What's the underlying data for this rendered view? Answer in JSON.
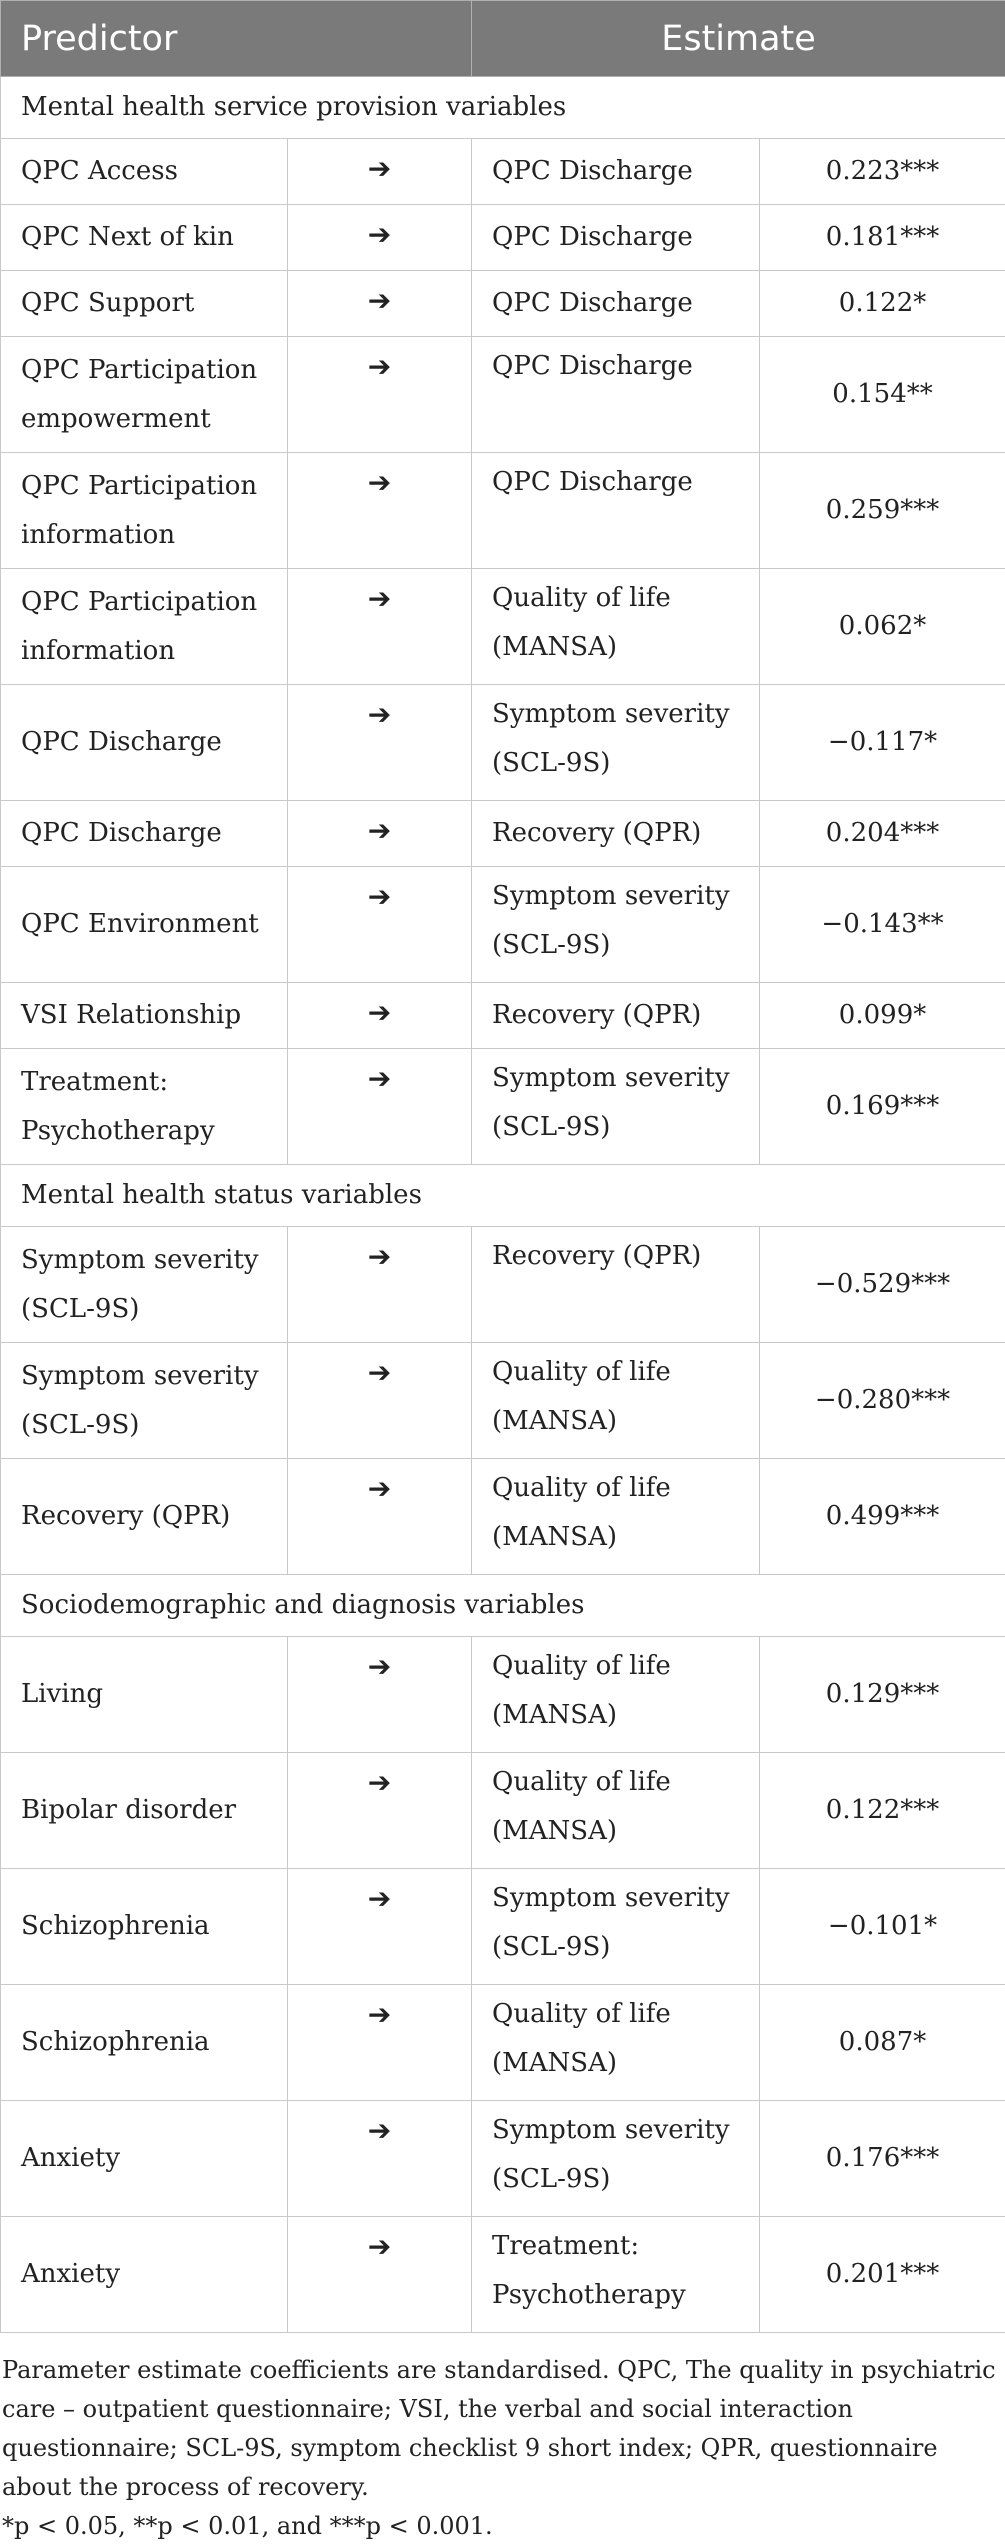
{
  "header": {
    "predictor": "Predictor",
    "estimate": "Estimate"
  },
  "arrow": "➔",
  "sections": [
    {
      "title": "Mental health service provision variables",
      "rows": [
        {
          "predictor": "QPC Access",
          "outcome": "QPC Discharge",
          "estimate": "0.223***"
        },
        {
          "predictor": "QPC Next of kin",
          "outcome": "QPC Discharge",
          "estimate": "0.181***"
        },
        {
          "predictor": "QPC Support",
          "outcome": "QPC Discharge",
          "estimate": "0.122*"
        },
        {
          "predictor": "QPC Participation empowerment",
          "outcome": "QPC Discharge",
          "estimate": "0.154**"
        },
        {
          "predictor": "QPC Participation information",
          "outcome": "QPC Discharge",
          "estimate": "0.259***"
        },
        {
          "predictor": "QPC Participation information",
          "outcome": "Quality of life (MANSA)",
          "estimate": "0.062*"
        },
        {
          "predictor": "QPC Discharge",
          "outcome": "Symptom severity (SCL-9S)",
          "estimate": "−0.117*"
        },
        {
          "predictor": "QPC Discharge",
          "outcome": "Recovery (QPR)",
          "estimate": "0.204***"
        },
        {
          "predictor": "QPC Environment",
          "outcome": "Symptom severity (SCL-9S)",
          "estimate": "−0.143**"
        },
        {
          "predictor": "VSI Relationship",
          "outcome": "Recovery (QPR)",
          "estimate": "0.099*"
        },
        {
          "predictor": "Treatment: Psychotherapy",
          "outcome": "Symptom severity (SCL-9S)",
          "estimate": "0.169***"
        }
      ]
    },
    {
      "title": "Mental health status variables",
      "rows": [
        {
          "predictor": "Symptom severity (SCL-9S)",
          "outcome": "Recovery (QPR)",
          "estimate": "−0.529***"
        },
        {
          "predictor": "Symptom severity (SCL-9S)",
          "outcome": "Quality of life (MANSA)",
          "estimate": "−0.280***"
        },
        {
          "predictor": "Recovery (QPR)",
          "outcome": "Quality of life (MANSA)",
          "estimate": "0.499***"
        }
      ]
    },
    {
      "title": "Sociodemographic and diagnosis variables",
      "rows": [
        {
          "predictor": "Living",
          "outcome": "Quality of life (MANSA)",
          "estimate": "0.129***"
        },
        {
          "predictor": "Bipolar disorder",
          "outcome": "Quality of life (MANSA)",
          "estimate": "0.122***"
        },
        {
          "predictor": "Schizophrenia",
          "outcome": "Symptom severity (SCL-9S)",
          "estimate": "−0.101*"
        },
        {
          "predictor": "Schizophrenia",
          "outcome": "Quality of life (MANSA)",
          "estimate": "0.087*"
        },
        {
          "predictor": "Anxiety",
          "outcome": "Symptom severity (SCL-9S)",
          "estimate": "0.176***"
        },
        {
          "predictor": "Anxiety",
          "outcome": "Treatment: Psychotherapy",
          "estimate": "0.201***"
        }
      ]
    }
  ],
  "notes": {
    "text": "Parameter estimate coefficients are standardised. QPC, The quality in psychiatric care – outpatient questionnaire; VSI, the verbal and social interaction questionnaire; SCL-9S, symptom checklist 9 short index; QPR, questionnaire about the process of recovery.",
    "significance": "*p < 0.05, **p < 0.01, and ***p < 0.001."
  }
}
